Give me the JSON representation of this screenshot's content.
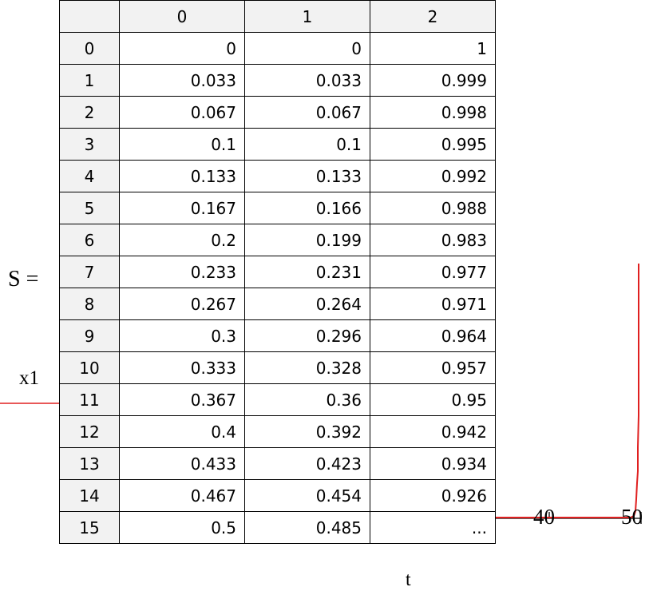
{
  "matrix": {
    "name": "S",
    "equals": "=",
    "column_headers": [
      "0",
      "1",
      "2"
    ],
    "rows": [
      {
        "index": "0",
        "cells": [
          "0",
          "0",
          "1"
        ]
      },
      {
        "index": "1",
        "cells": [
          "0.033",
          "0.033",
          "0.999"
        ]
      },
      {
        "index": "2",
        "cells": [
          "0.067",
          "0.067",
          "0.998"
        ]
      },
      {
        "index": "3",
        "cells": [
          "0.1",
          "0.1",
          "0.995"
        ]
      },
      {
        "index": "4",
        "cells": [
          "0.133",
          "0.133",
          "0.992"
        ]
      },
      {
        "index": "5",
        "cells": [
          "0.167",
          "0.166",
          "0.988"
        ]
      },
      {
        "index": "6",
        "cells": [
          "0.2",
          "0.199",
          "0.983"
        ]
      },
      {
        "index": "7",
        "cells": [
          "0.233",
          "0.231",
          "0.977"
        ]
      },
      {
        "index": "8",
        "cells": [
          "0.267",
          "0.264",
          "0.971"
        ]
      },
      {
        "index": "9",
        "cells": [
          "0.3",
          "0.296",
          "0.964"
        ]
      },
      {
        "index": "10",
        "cells": [
          "0.333",
          "0.328",
          "0.957"
        ]
      },
      {
        "index": "11",
        "cells": [
          "0.367",
          "0.36",
          "0.95"
        ]
      },
      {
        "index": "12",
        "cells": [
          "0.4",
          "0.392",
          "0.942"
        ]
      },
      {
        "index": "13",
        "cells": [
          "0.433",
          "0.423",
          "0.934"
        ]
      },
      {
        "index": "14",
        "cells": [
          "0.467",
          "0.454",
          "0.926"
        ]
      },
      {
        "index": "15",
        "cells": [
          "0.5",
          "0.485",
          "..."
        ]
      }
    ]
  },
  "plot": {
    "y_label": "x1",
    "x_label": "t",
    "x_ticks": [
      "40",
      "50"
    ],
    "trace_color": "#e02020",
    "axis_color": "#000000"
  }
}
